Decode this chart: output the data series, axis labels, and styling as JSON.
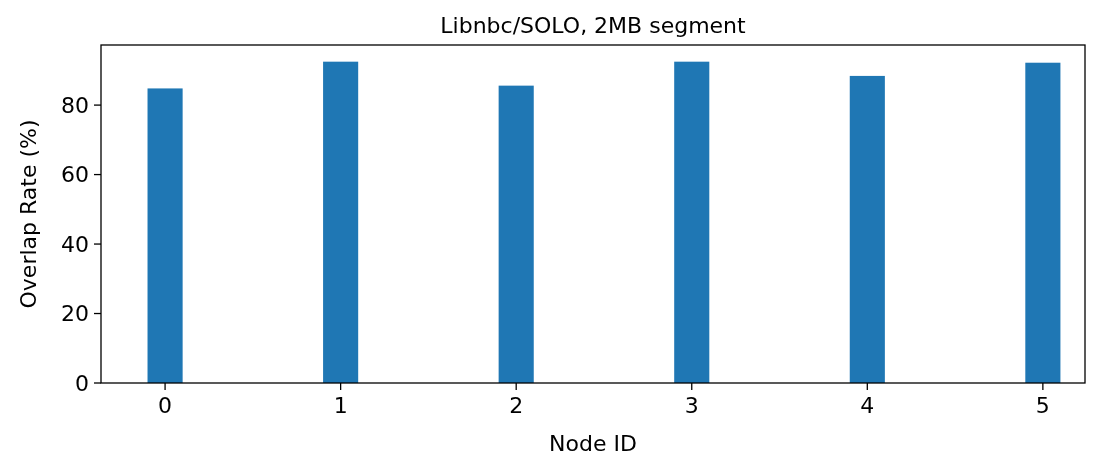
{
  "chart_data": {
    "type": "bar",
    "title": "Libnbc/SOLO, 2MB segment",
    "xlabel": "Node ID",
    "ylabel": "Overlap Rate (%)",
    "categories": [
      "0",
      "1",
      "2",
      "3",
      "4",
      "5"
    ],
    "values": [
      84.8,
      92.5,
      85.6,
      92.5,
      88.4,
      92.2
    ],
    "color": "#1f77b4",
    "ylim": [
      0,
      97.3
    ],
    "yticks": [
      0,
      20,
      40,
      60,
      80
    ],
    "grid": false
  }
}
